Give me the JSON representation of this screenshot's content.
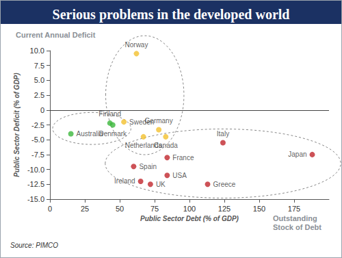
{
  "chart_data": {
    "type": "scatter",
    "title": "Serious problems in the developed world",
    "annotations": [
      "Current Annual Deficit",
      "Outstanding Stock of Debt"
    ],
    "source": "Source: PIMCO",
    "xlabel": "Public Sector Debt (% of GDP)",
    "ylabel": "Public Sector Deficit (% of GDP)",
    "labels": [
      "Norway",
      "Finland",
      "Denmark",
      "Australia",
      "Sweden",
      "Germany",
      "Netherlands",
      "Canada",
      "Italy",
      "Japan",
      "France",
      "Spain",
      "USA",
      "Ireland",
      "UK",
      "Greece"
    ],
    "x": [
      62,
      43,
      45,
      15,
      53,
      78,
      67,
      83,
      124,
      188,
      84,
      60,
      84,
      65,
      72,
      113
    ],
    "values": [
      9.5,
      -2.2,
      -2.5,
      -4,
      -2,
      -3.3,
      -4.5,
      -4.5,
      -5.5,
      -7.5,
      -8,
      -9.5,
      -11,
      -12,
      -12.5,
      -12.5
    ],
    "colors": [
      "#f2c12e",
      "#3cb83c",
      "#3cb83c",
      "#3cb83c",
      "#f2c12e",
      "#f2c12e",
      "#f2c12e",
      "#f2c12e",
      "#c1272d",
      "#c1272d",
      "#c1272d",
      "#c1272d",
      "#c1272d",
      "#c1272d",
      "#c1272d",
      "#c1272d"
    ],
    "xlim": [
      0,
      200
    ],
    "xticks": [
      0,
      25,
      50,
      75,
      100,
      125,
      150,
      175
    ],
    "ylim": [
      -15,
      10
    ],
    "yticks": [
      {
        "value": 10,
        "label": "10.0"
      },
      {
        "value": 7.5,
        "label": "7.5"
      },
      {
        "value": 5,
        "label": "5.0"
      },
      {
        "value": 2.5,
        "label": "2.5"
      },
      0,
      -2.5,
      {
        "value": -5,
        "label": "-5.0"
      },
      {
        "value": -7.5,
        "label": "-7.5"
      },
      {
        "value": -10,
        "label": "-10.0"
      },
      {
        "value": -12.5,
        "label": "-12.5"
      },
      {
        "value": -15,
        "label": "-15.0"
      }
    ],
    "grid": false
  }
}
